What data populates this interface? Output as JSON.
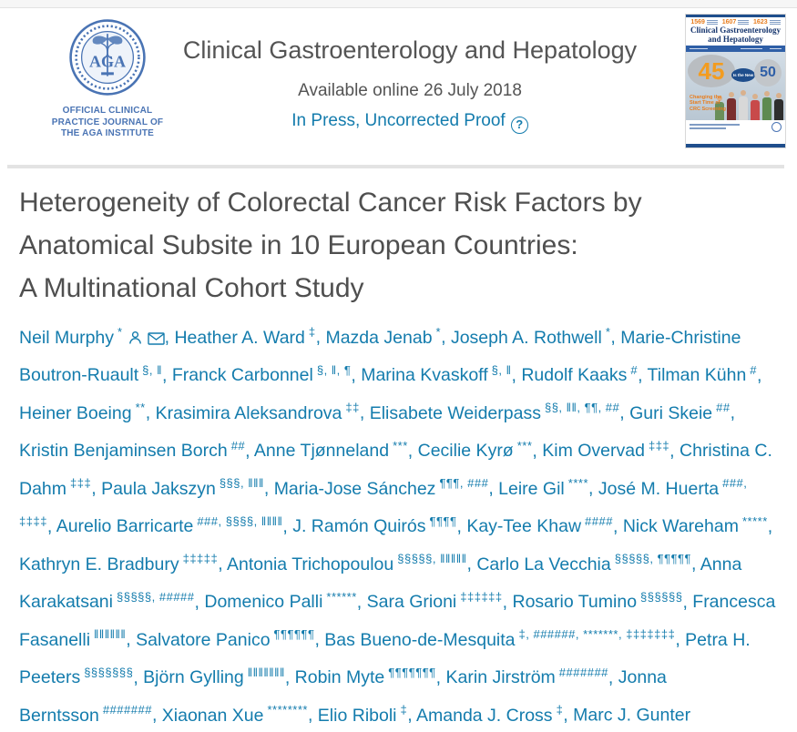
{
  "colors": {
    "accent_teal": "#147CAD",
    "title_gray": "#4F4F4F",
    "logo_blue": "#4A74B4",
    "cover_orange": "#E87D1E",
    "cover_navy": "#1F4E8C"
  },
  "header": {
    "logo_monogram": "AGA",
    "logo_caption_lines": [
      "OFFICIAL CLINICAL",
      "PRACTICE JOURNAL OF",
      "THE AGA INSTITUTE"
    ],
    "journal_title": "Clinical Gastroenterology and Hepatology",
    "available_online": "Available online 26 July 2018",
    "in_press_label": "In Press, Uncorrected Proof",
    "help_glyph": "?"
  },
  "cover": {
    "stats": [
      "1569",
      "1607",
      "1623"
    ],
    "title_line1": "Clinical Gastroenterology",
    "title_line2": "and Hepatology",
    "big_left": "45",
    "middle_text": "Is the New",
    "big_right": "50",
    "feature_lines": [
      "Changing the",
      "Start Time of",
      "CRC Screening"
    ]
  },
  "article": {
    "title_lines": [
      "Heterogeneity of Colorectal Cancer Risk Factors by",
      "Anatomical Subsite in 10 European Countries:",
      "A Multinational Cohort Study"
    ],
    "title": "Heterogeneity of Colorectal Cancer Risk Factors by Anatomical Subsite in 10 European Countries: A Multinational Cohort Study",
    "authors": [
      {
        "name": "Neil Murphy",
        "sup": "*",
        "icons": [
          "profile",
          "email"
        ]
      },
      {
        "name": "Heather A. Ward",
        "sup": "‡"
      },
      {
        "name": "Mazda Jenab",
        "sup": "*"
      },
      {
        "name": "Joseph A. Rothwell",
        "sup": "*"
      },
      {
        "name": "Marie-Christine Boutron-Ruault",
        "sup": "§, ‖"
      },
      {
        "name": "Franck Carbonnel",
        "sup": "§, ‖, ¶"
      },
      {
        "name": "Marina Kvaskoff",
        "sup": "§, ‖"
      },
      {
        "name": "Rudolf Kaaks",
        "sup": "#"
      },
      {
        "name": "Tilman Kühn",
        "sup": "#"
      },
      {
        "name": "Heiner Boeing",
        "sup": "**"
      },
      {
        "name": "Krasimira Aleksandrova",
        "sup": "‡‡"
      },
      {
        "name": "Elisabete Weiderpass",
        "sup": "§§, ‖‖, ¶¶, ##"
      },
      {
        "name": "Guri Skeie",
        "sup": "##"
      },
      {
        "name": "Kristin Benjaminsen Borch",
        "sup": "##"
      },
      {
        "name": "Anne Tjønneland",
        "sup": "***"
      },
      {
        "name": "Cecilie Kyrø",
        "sup": "***"
      },
      {
        "name": "Kim Overvad",
        "sup": "‡‡‡"
      },
      {
        "name": "Christina C. Dahm",
        "sup": "‡‡‡"
      },
      {
        "name": "Paula Jakszyn",
        "sup": "§§§, ‖‖‖"
      },
      {
        "name": "Maria-Jose Sánchez",
        "sup": "¶¶¶, ###"
      },
      {
        "name": "Leire Gil",
        "sup": "****"
      },
      {
        "name": "José M. Huerta",
        "sup": "###, ‡‡‡‡"
      },
      {
        "name": "Aurelio Barricarte",
        "sup": "###, §§§§, ‖‖‖‖"
      },
      {
        "name": "J. Ramón Quirós",
        "sup": "¶¶¶¶"
      },
      {
        "name": "Kay-Tee Khaw",
        "sup": "####"
      },
      {
        "name": "Nick Wareham",
        "sup": "*****"
      },
      {
        "name": "Kathryn E. Bradbury",
        "sup": "‡‡‡‡‡"
      },
      {
        "name": "Antonia Trichopoulou",
        "sup": "§§§§§, ‖‖‖‖‖"
      },
      {
        "name": "Carlo La Vecchia",
        "sup": "§§§§§, ¶¶¶¶¶"
      },
      {
        "name": "Anna Karakatsani",
        "sup": "§§§§§, #####"
      },
      {
        "name": "Domenico Palli",
        "sup": "******"
      },
      {
        "name": "Sara Grioni",
        "sup": "‡‡‡‡‡‡"
      },
      {
        "name": "Rosario Tumino",
        "sup": "§§§§§§"
      },
      {
        "name": "Francesca Fasanelli",
        "sup": "‖‖‖‖‖‖"
      },
      {
        "name": "Salvatore Panico",
        "sup": "¶¶¶¶¶¶"
      },
      {
        "name": "Bas Bueno-de-Mesquita",
        "sup": "‡, ######, *******, ‡‡‡‡‡‡‡"
      },
      {
        "name": "Petra H. Peeters",
        "sup": "§§§§§§§"
      },
      {
        "name": "Björn Gylling",
        "sup": "‖‖‖‖‖‖‖"
      },
      {
        "name": "Robin Myte",
        "sup": "¶¶¶¶¶¶¶"
      },
      {
        "name": "Karin Jirström",
        "sup": "#######"
      },
      {
        "name": "Jonna Berntsson",
        "sup": "#######"
      },
      {
        "name": "Xiaonan Xue",
        "sup": "********"
      },
      {
        "name": "Elio Riboli",
        "sup": "‡"
      },
      {
        "name": "Amanda J. Cross",
        "sup": "‡"
      },
      {
        "name": "Marc J. Gunter",
        "sup": ""
      }
    ]
  }
}
